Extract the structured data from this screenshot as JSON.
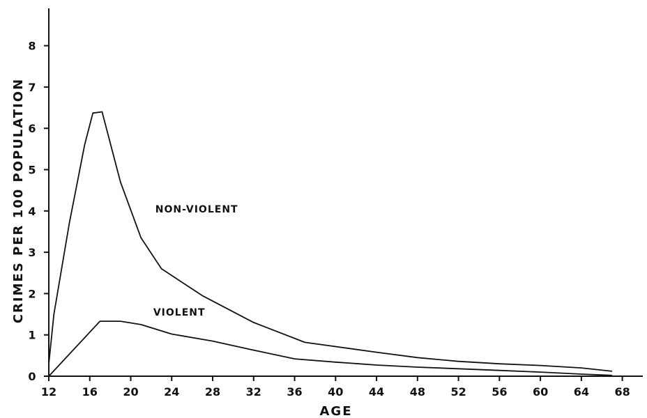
{
  "chart_data": {
    "type": "line",
    "title": "",
    "xlabel": "AGE",
    "ylabel": "CRIMES PER 100 POPULATION",
    "xlim": [
      12,
      70
    ],
    "ylim": [
      0,
      9
    ],
    "xticks": [
      12,
      16,
      20,
      24,
      28,
      32,
      36,
      40,
      44,
      48,
      52,
      56,
      60,
      64,
      68
    ],
    "yticks": [
      0,
      1,
      2,
      3,
      4,
      5,
      6,
      7,
      8
    ],
    "grid": false,
    "legend": "none",
    "series": [
      {
        "name": "NON-VIOLENT",
        "x": [
          12,
          12.5,
          14,
          15.5,
          16.3,
          17.2,
          19,
          21,
          23,
          27,
          32,
          37,
          44,
          48,
          52,
          56,
          60,
          64,
          67
        ],
        "y": [
          0.3,
          1.5,
          3.7,
          5.6,
          6.37,
          6.4,
          4.7,
          3.35,
          2.6,
          1.95,
          1.3,
          0.82,
          0.58,
          0.45,
          0.36,
          0.3,
          0.26,
          0.2,
          0.12
        ]
      },
      {
        "name": "VIOLENT",
        "x": [
          12,
          17,
          19,
          21,
          24,
          28,
          32,
          36,
          40,
          44,
          48,
          52,
          56,
          60,
          64,
          67
        ],
        "y": [
          0,
          1.33,
          1.33,
          1.25,
          1.02,
          0.85,
          0.63,
          0.42,
          0.34,
          0.27,
          0.22,
          0.18,
          0.14,
          0.1,
          0.05,
          0.02
        ]
      }
    ]
  }
}
